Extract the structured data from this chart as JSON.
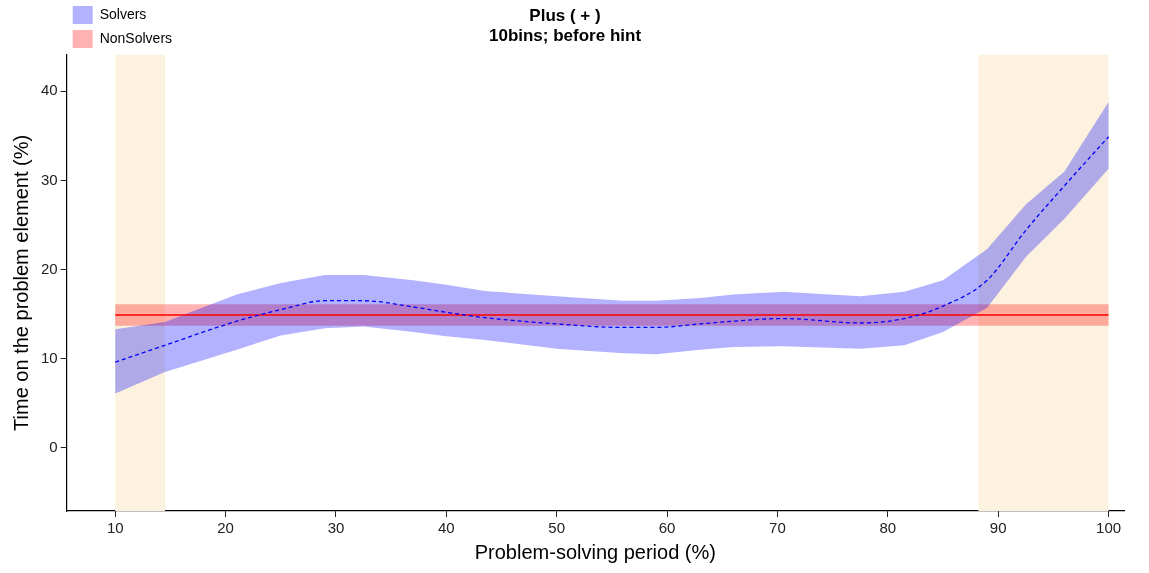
{
  "chart_data": {
    "type": "line",
    "title": "Plus ( + )",
    "subtitle": "10bins; before hint",
    "xlabel": "Problem-solving period (%)",
    "ylabel": "Time on the problem element (%)",
    "xlim": [
      5.6,
      101.4
    ],
    "xticks": [
      10,
      20,
      30,
      40,
      50,
      60,
      70,
      80,
      90,
      100
    ],
    "ylim": [
      -7.1,
      44.1
    ],
    "yticks": [
      0,
      10,
      20,
      30,
      40
    ],
    "grid": false,
    "legend": "top left",
    "marker": "none",
    "series": [
      {
        "name": "Solvers",
        "color": "#0000ff",
        "line_style": "dashed",
        "x": [
          10,
          14.5,
          21,
          25,
          29,
          32.5,
          37,
          40,
          43.5,
          50,
          56,
          59,
          63,
          66,
          70.5,
          77.5,
          81.5,
          85,
          89,
          92.5,
          96,
          100
        ],
        "values": [
          9.6,
          11.5,
          14.2,
          15.5,
          16.5,
          16.5,
          15.8,
          15.2,
          14.6,
          13.9,
          13.5,
          13.5,
          13.9,
          14.2,
          14.5,
          14.0,
          14.5,
          15.9,
          18.8,
          24.4,
          29.4,
          34.9
        ],
        "lower": [
          6.1,
          8.5,
          11.0,
          12.6,
          13.4,
          13.6,
          13.0,
          12.5,
          12.1,
          11.1,
          10.6,
          10.5,
          11.0,
          11.3,
          11.4,
          11.1,
          11.5,
          13.0,
          15.7,
          21.4,
          25.7,
          31.3
        ],
        "upper": [
          13.3,
          14.1,
          17.2,
          18.5,
          19.4,
          19.4,
          18.8,
          18.3,
          17.6,
          17.0,
          16.5,
          16.5,
          16.8,
          17.2,
          17.5,
          17.0,
          17.5,
          18.8,
          22.3,
          27.3,
          31.0,
          38.8
        ]
      },
      {
        "name": "NonSolvers",
        "color": "#ff0000",
        "line_style": "solid",
        "x": [
          10,
          100
        ],
        "values": [
          14.9,
          14.9
        ],
        "lower": [
          13.7,
          13.7
        ],
        "upper": [
          16.1,
          16.1
        ]
      }
    ],
    "bands": [
      {
        "axis": "x",
        "from": 10,
        "to": 14.5,
        "color": "#fcf2df"
      },
      {
        "axis": "x",
        "from": 88.2,
        "to": 100,
        "color": "#fcf2df"
      }
    ]
  }
}
